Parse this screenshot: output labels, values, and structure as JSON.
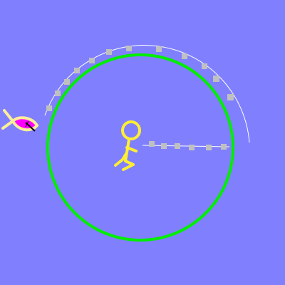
{
  "scene": {
    "background_color": "#8080ff",
    "arena_ring_color": "#00ee00",
    "guide_arc_color": "#ffffff",
    "marker_color": "#c0c0c0",
    "stick_figure_color": "#ffee33",
    "fish_body_color": "#ffee99",
    "fish_fill_color": "#ff00ff"
  },
  "icons": {
    "player": "stick-figure-icon",
    "target": "fish-icon"
  }
}
